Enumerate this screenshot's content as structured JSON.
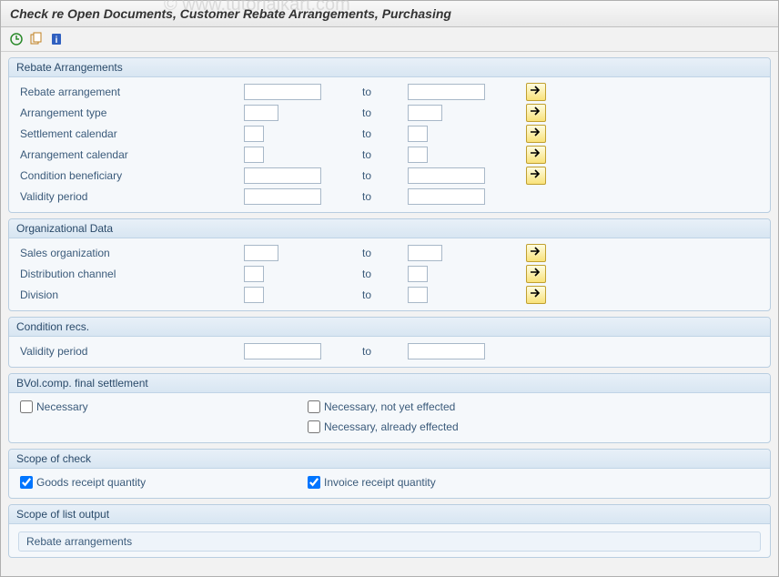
{
  "title": "Check re Open Documents, Customer Rebate Arrangements, Purchasing",
  "watermark": "© www.tutorialkart.com",
  "to_label": "to",
  "groups": {
    "rebate": {
      "header": "Rebate Arrangements",
      "rows": [
        {
          "label": "Rebate arrangement",
          "w": "wide",
          "multi": true
        },
        {
          "label": "Arrangement type",
          "w": "narrow",
          "multi": true
        },
        {
          "label": "Settlement calendar",
          "w": "tiny",
          "multi": true
        },
        {
          "label": "Arrangement calendar",
          "w": "tiny",
          "multi": true
        },
        {
          "label": "Condition beneficiary",
          "w": "wide",
          "multi": true
        },
        {
          "label": "Validity period",
          "w": "wide",
          "multi": false
        }
      ]
    },
    "org": {
      "header": "Organizational Data",
      "rows": [
        {
          "label": "Sales organization",
          "w": "narrow",
          "multi": true
        },
        {
          "label": "Distribution channel",
          "w": "tiny",
          "multi": true
        },
        {
          "label": "Division",
          "w": "tiny",
          "multi": true
        }
      ]
    },
    "cond": {
      "header": "Condition recs.",
      "rows": [
        {
          "label": "Validity period",
          "w": "wide",
          "multi": false
        }
      ]
    },
    "bvol": {
      "header": "BVol.comp. final settlement",
      "checks": [
        [
          {
            "label": "Necessary",
            "checked": false
          },
          {
            "label": "Necessary, not yet effected",
            "checked": false
          }
        ],
        [
          null,
          {
            "label": "Necessary, already effected",
            "checked": false
          }
        ]
      ]
    },
    "scope": {
      "header": "Scope of check",
      "checks": [
        [
          {
            "label": "Goods receipt quantity",
            "checked": true
          },
          {
            "label": "Invoice receipt quantity",
            "checked": true
          }
        ]
      ]
    },
    "listoutput": {
      "header": "Scope of list output",
      "sub": "Rebate arrangements"
    }
  },
  "colors": {
    "arrow": "#000000",
    "multi_bg_top": "#fefce0",
    "multi_bg_bot": "#f9e27a"
  }
}
